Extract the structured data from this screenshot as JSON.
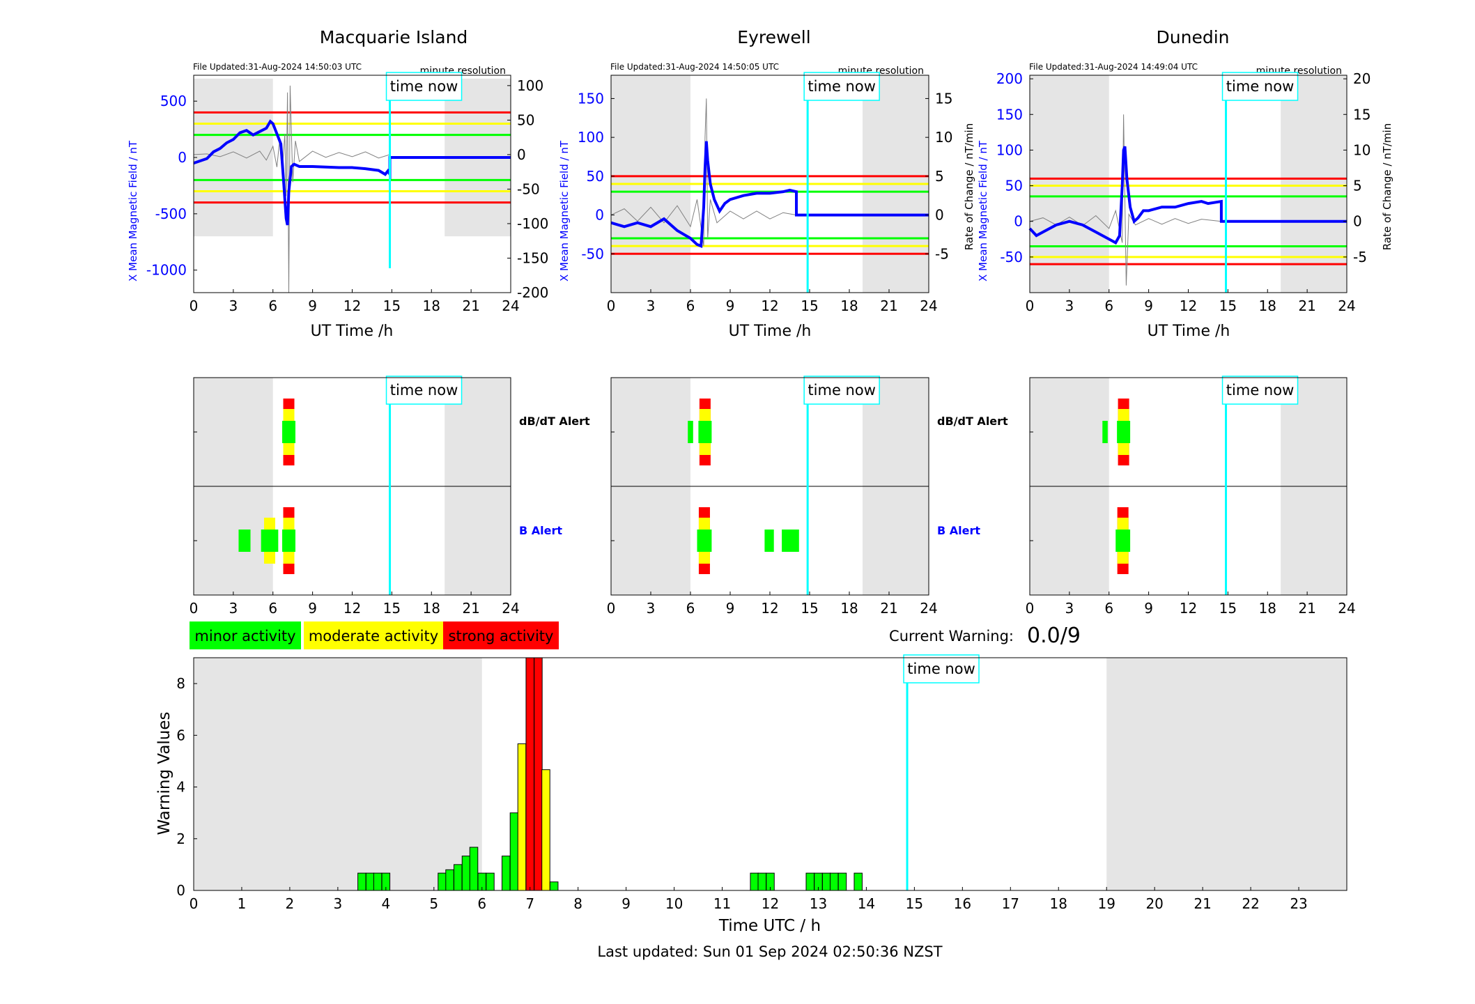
{
  "colors": {
    "blue": "#0000ff",
    "black": "#000000",
    "cyan": "#00ffff",
    "shade": "#e5e5e5",
    "red": "#ff0000",
    "yellow": "#ffff00",
    "green": "#00ff00"
  },
  "panel_labels": {
    "file_updated_prefix": "File Updated:",
    "resolution": "minute resolution",
    "time_now": "time now",
    "ut_xlabel": "UT Time /h",
    "dbdt_alert": "dB/dT Alert",
    "b_alert": "B Alert"
  },
  "legend": {
    "minor": "minor activity",
    "moderate": "moderate activity",
    "strong": "strong activity"
  },
  "current_warning": {
    "label": "Current Warning:",
    "value": "0.0/9"
  },
  "footer": {
    "last_updated": "Last updated: Sun 01 Sep 2024 02:50:36 NZST"
  },
  "chart_data": [
    {
      "type": "line",
      "title": "Macquarie Island",
      "file_updated": "31-Aug-2024 14:50:03 UTC",
      "xlabel": "UT Time /h",
      "ylabel": "X Mean Magnetic Field / nT",
      "y2label": "",
      "xlim": [
        0,
        24
      ],
      "xticks": [
        0,
        3,
        6,
        9,
        12,
        15,
        18,
        21,
        24
      ],
      "ylim": [
        -1200,
        730
      ],
      "yticks": [
        500,
        0,
        -500,
        -1000
      ],
      "y2lim": [
        -200,
        115
      ],
      "y2ticks": [
        100,
        50,
        0,
        -50,
        -100,
        -150,
        -200
      ],
      "time_now": 14.85,
      "shade": [
        [
          0,
          6
        ],
        [
          19,
          24
        ]
      ],
      "shade_y": [
        -700,
        700
      ],
      "thresholds": {
        "red": 400,
        "yellow": 300,
        "green": 200
      },
      "field": [
        [
          0,
          -50
        ],
        [
          0.5,
          -30
        ],
        [
          1,
          -10
        ],
        [
          1.5,
          50
        ],
        [
          2,
          80
        ],
        [
          2.5,
          130
        ],
        [
          3,
          160
        ],
        [
          3.5,
          220
        ],
        [
          4,
          240
        ],
        [
          4.5,
          200
        ],
        [
          5,
          230
        ],
        [
          5.5,
          260
        ],
        [
          5.8,
          320
        ],
        [
          6,
          300
        ],
        [
          6.3,
          210
        ],
        [
          6.6,
          120
        ],
        [
          6.8,
          -200
        ],
        [
          7,
          -540
        ],
        [
          7.1,
          -600
        ],
        [
          7.2,
          -300
        ],
        [
          7.4,
          -80
        ],
        [
          7.6,
          -60
        ],
        [
          8,
          -80
        ],
        [
          9,
          -80
        ],
        [
          10,
          -85
        ],
        [
          11,
          -90
        ],
        [
          12,
          -90
        ],
        [
          13,
          -100
        ],
        [
          14,
          -115
        ],
        [
          14.5,
          -150
        ],
        [
          14.7,
          -120
        ],
        [
          14.85,
          -150
        ],
        [
          14.85,
          0
        ],
        [
          24,
          0
        ]
      ],
      "rate": [
        [
          0,
          0
        ],
        [
          1,
          1
        ],
        [
          2,
          -3
        ],
        [
          3,
          4
        ],
        [
          4,
          -5
        ],
        [
          5,
          5
        ],
        [
          5.5,
          -8
        ],
        [
          6,
          12
        ],
        [
          6.3,
          -18
        ],
        [
          6.5,
          20
        ],
        [
          6.7,
          -25
        ],
        [
          6.9,
          30
        ],
        [
          7,
          -60
        ],
        [
          7.1,
          90
        ],
        [
          7.2,
          -200
        ],
        [
          7.3,
          100
        ],
        [
          7.5,
          -40
        ],
        [
          7.7,
          20
        ],
        [
          8,
          -10
        ],
        [
          9,
          5
        ],
        [
          10,
          -4
        ],
        [
          11,
          3
        ],
        [
          12,
          -3
        ],
        [
          13,
          4
        ],
        [
          14,
          -5
        ],
        [
          14.85,
          0
        ]
      ]
    },
    {
      "type": "line",
      "title": "Eyrewell",
      "file_updated": "31-Aug-2024 14:50:05 UTC",
      "xlabel": "UT Time /h",
      "ylabel": "X Mean Magnetic Field / nT",
      "y2label": "Rate of Change / nT/min",
      "xlim": [
        0,
        24
      ],
      "xticks": [
        0,
        3,
        6,
        9,
        12,
        15,
        18,
        21,
        24
      ],
      "ylim": [
        -100,
        180
      ],
      "yticks": [
        150,
        100,
        50,
        0,
        -50
      ],
      "y2lim": [
        -10,
        18
      ],
      "y2ticks": [
        15,
        10,
        5,
        0,
        -5
      ],
      "time_now": 14.85,
      "shade": [
        [
          0,
          6
        ],
        [
          19,
          24
        ]
      ],
      "shade_y": [
        -100,
        180
      ],
      "thresholds": {
        "red": 50,
        "yellow": 40,
        "green": 30
      },
      "field": [
        [
          0,
          -10
        ],
        [
          1,
          -15
        ],
        [
          2,
          -10
        ],
        [
          3,
          -15
        ],
        [
          4,
          -5
        ],
        [
          5,
          -20
        ],
        [
          5.5,
          -25
        ],
        [
          6,
          -30
        ],
        [
          6.5,
          -38
        ],
        [
          6.8,
          -40
        ],
        [
          7,
          10
        ],
        [
          7.1,
          60
        ],
        [
          7.2,
          95
        ],
        [
          7.3,
          70
        ],
        [
          7.5,
          40
        ],
        [
          7.8,
          20
        ],
        [
          8.2,
          5
        ],
        [
          8.6,
          15
        ],
        [
          9,
          20
        ],
        [
          10,
          25
        ],
        [
          11,
          28
        ],
        [
          12,
          28
        ],
        [
          13,
          30
        ],
        [
          13.5,
          32
        ],
        [
          14,
          30
        ],
        [
          14,
          0
        ],
        [
          24,
          0
        ]
      ],
      "rate": [
        [
          0,
          0
        ],
        [
          1,
          0.8
        ],
        [
          2,
          -0.8
        ],
        [
          3,
          1
        ],
        [
          4,
          -1
        ],
        [
          5,
          1.2
        ],
        [
          6,
          -1.5
        ],
        [
          6.5,
          2
        ],
        [
          7,
          -4
        ],
        [
          7.1,
          10
        ],
        [
          7.2,
          15
        ],
        [
          7.3,
          -3
        ],
        [
          7.5,
          2
        ],
        [
          8,
          -1
        ],
        [
          9,
          0.5
        ],
        [
          10,
          -0.5
        ],
        [
          11,
          0.5
        ],
        [
          12,
          -0.5
        ],
        [
          13,
          0.3
        ],
        [
          14,
          0
        ]
      ]
    },
    {
      "type": "line",
      "title": "Dunedin",
      "file_updated": "31-Aug-2024 14:49:04 UTC",
      "xlabel": "UT Time /h",
      "ylabel": "X Mean Magnetic Field / nT",
      "y2label": "Rate of Change / nT/min",
      "xlim": [
        0,
        24
      ],
      "xticks": [
        0,
        3,
        6,
        9,
        12,
        15,
        18,
        21,
        24
      ],
      "ylim": [
        -100,
        205
      ],
      "yticks": [
        200,
        150,
        100,
        50,
        0,
        -50
      ],
      "y2lim": [
        -10,
        20.5
      ],
      "y2ticks": [
        20,
        15,
        10,
        5,
        0,
        -5
      ],
      "time_now": 14.85,
      "shade": [
        [
          0,
          6
        ],
        [
          19,
          24
        ]
      ],
      "shade_y": [
        -100,
        205
      ],
      "thresholds": {
        "red": 60,
        "yellow": 50,
        "green": 35
      },
      "field": [
        [
          0,
          -10
        ],
        [
          0.5,
          -20
        ],
        [
          1,
          -15
        ],
        [
          2,
          -5
        ],
        [
          3,
          0
        ],
        [
          4,
          -5
        ],
        [
          5,
          -15
        ],
        [
          5.5,
          -20
        ],
        [
          6,
          -25
        ],
        [
          6.5,
          -30
        ],
        [
          6.8,
          -20
        ],
        [
          7,
          50
        ],
        [
          7.1,
          100
        ],
        [
          7.2,
          105
        ],
        [
          7.35,
          60
        ],
        [
          7.6,
          20
        ],
        [
          7.9,
          0
        ],
        [
          8.2,
          5
        ],
        [
          8.6,
          15
        ],
        [
          9,
          15
        ],
        [
          10,
          20
        ],
        [
          11,
          20
        ],
        [
          12,
          25
        ],
        [
          13,
          28
        ],
        [
          13.5,
          25
        ],
        [
          14.5,
          28
        ],
        [
          14.5,
          0
        ],
        [
          24,
          0
        ]
      ],
      "rate": [
        [
          0,
          0
        ],
        [
          1,
          0.5
        ],
        [
          2,
          -0.5
        ],
        [
          3,
          0.6
        ],
        [
          4,
          -0.6
        ],
        [
          5,
          0.8
        ],
        [
          6,
          -1
        ],
        [
          6.5,
          1.5
        ],
        [
          7,
          -3
        ],
        [
          7.1,
          15
        ],
        [
          7.3,
          -9
        ],
        [
          7.5,
          1
        ],
        [
          8,
          -0.5
        ],
        [
          9,
          0.4
        ],
        [
          10,
          -0.4
        ],
        [
          11,
          0.4
        ],
        [
          12,
          -0.3
        ],
        [
          13,
          0.3
        ],
        [
          14.5,
          0
        ]
      ]
    },
    {
      "type": "bar",
      "title": "",
      "xlabel": "Time UTC / h",
      "ylabel": "Warning Values",
      "xlim": [
        0,
        24
      ],
      "xticks": [
        0,
        1,
        2,
        3,
        4,
        5,
        6,
        7,
        8,
        9,
        10,
        11,
        12,
        13,
        14,
        15,
        16,
        17,
        18,
        19,
        20,
        21,
        22,
        23
      ],
      "ylim": [
        0,
        9
      ],
      "yticks": [
        0,
        2,
        4,
        6,
        8
      ],
      "time_now": 14.85,
      "shade": [
        [
          0,
          6
        ],
        [
          19,
          24
        ]
      ],
      "bars": [
        {
          "x": 3.5,
          "value": 0.67,
          "level": "minor"
        },
        {
          "x": 3.67,
          "value": 0.67,
          "level": "minor"
        },
        {
          "x": 3.83,
          "value": 0.67,
          "level": "minor"
        },
        {
          "x": 4.0,
          "value": 0.67,
          "level": "minor"
        },
        {
          "x": 5.17,
          "value": 0.67,
          "level": "minor"
        },
        {
          "x": 5.33,
          "value": 0.8,
          "level": "minor"
        },
        {
          "x": 5.5,
          "value": 1.0,
          "level": "minor"
        },
        {
          "x": 5.67,
          "value": 1.33,
          "level": "minor"
        },
        {
          "x": 5.83,
          "value": 1.67,
          "level": "minor"
        },
        {
          "x": 6.0,
          "value": 0.67,
          "level": "minor"
        },
        {
          "x": 6.17,
          "value": 0.67,
          "level": "minor"
        },
        {
          "x": 6.5,
          "value": 1.33,
          "level": "minor"
        },
        {
          "x": 6.67,
          "value": 3.0,
          "level": "minor"
        },
        {
          "x": 6.83,
          "value": 5.67,
          "level": "moderate"
        },
        {
          "x": 7.0,
          "value": 9.0,
          "level": "strong"
        },
        {
          "x": 7.17,
          "value": 9.0,
          "level": "strong"
        },
        {
          "x": 7.33,
          "value": 4.67,
          "level": "moderate"
        },
        {
          "x": 7.5,
          "value": 0.33,
          "level": "minor"
        },
        {
          "x": 11.67,
          "value": 0.67,
          "level": "minor"
        },
        {
          "x": 11.83,
          "value": 0.67,
          "level": "minor"
        },
        {
          "x": 12.0,
          "value": 0.67,
          "level": "minor"
        },
        {
          "x": 12.83,
          "value": 0.67,
          "level": "minor"
        },
        {
          "x": 13.0,
          "value": 0.67,
          "level": "minor"
        },
        {
          "x": 13.17,
          "value": 0.67,
          "level": "minor"
        },
        {
          "x": 13.33,
          "value": 0.67,
          "level": "minor"
        },
        {
          "x": 13.5,
          "value": 0.67,
          "level": "minor"
        },
        {
          "x": 13.83,
          "value": 0.67,
          "level": "minor"
        }
      ]
    }
  ],
  "alert_data": [
    {
      "station": "Macquarie Island",
      "dbdt": [
        {
          "x0": 6.7,
          "x1": 7.7,
          "level": "strong"
        }
      ],
      "b": [
        {
          "x0": 3.4,
          "x1": 4.3,
          "level": "minor"
        },
        {
          "x0": 5.1,
          "x1": 6.4,
          "level": "moderate"
        },
        {
          "x0": 6.7,
          "x1": 7.7,
          "level": "strong"
        }
      ]
    },
    {
      "station": "Eyrewell",
      "dbdt": [
        {
          "x0": 5.8,
          "x1": 6.2,
          "level": "minor"
        },
        {
          "x0": 6.6,
          "x1": 7.6,
          "level": "strong"
        }
      ],
      "b": [
        {
          "x0": 6.5,
          "x1": 7.6,
          "level": "strong"
        },
        {
          "x0": 11.6,
          "x1": 12.3,
          "level": "minor"
        },
        {
          "x0": 12.9,
          "x1": 14.2,
          "level": "minor"
        }
      ]
    },
    {
      "station": "Dunedin",
      "dbdt": [
        {
          "x0": 5.5,
          "x1": 5.9,
          "level": "minor"
        },
        {
          "x0": 6.6,
          "x1": 7.6,
          "level": "strong"
        }
      ],
      "b": [
        {
          "x0": 6.5,
          "x1": 7.6,
          "level": "strong"
        }
      ]
    }
  ]
}
